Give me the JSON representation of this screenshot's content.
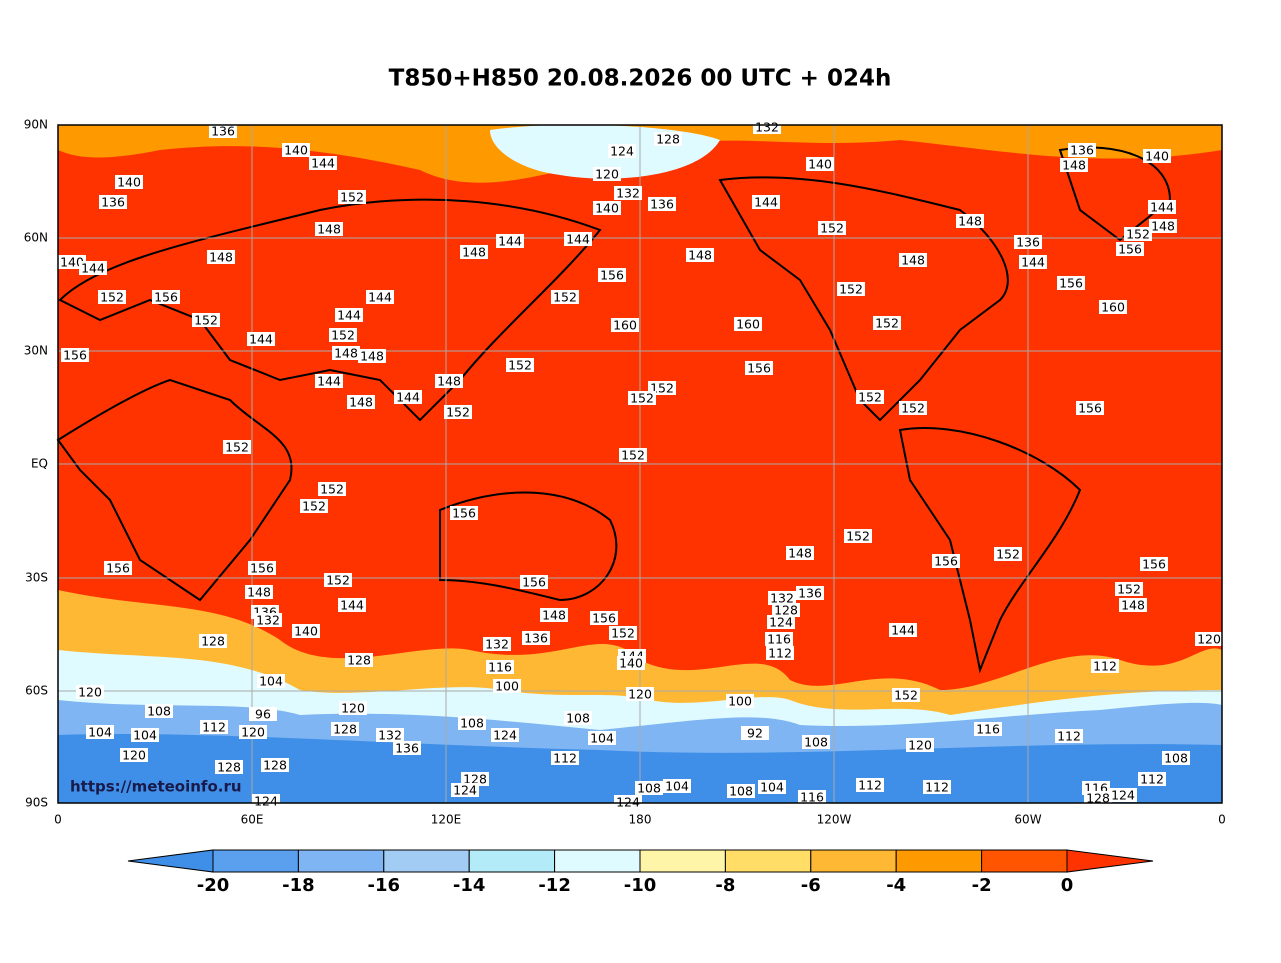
{
  "title": "T850+H850 20.08.2026 00 UTC + 024h",
  "axes": {
    "lat_labels": [
      "90N",
      "60N",
      "30N",
      "EQ",
      "30S",
      "60S",
      "90S"
    ],
    "lon_labels": [
      "0",
      "60E",
      "120E",
      "180",
      "120W",
      "60W",
      "0"
    ]
  },
  "credit": "https://meteoinfo.ru",
  "colorbar": {
    "levels": [
      "-20",
      "-18",
      "-16",
      "-14",
      "-12",
      "-10",
      "-8",
      "-6",
      "-4",
      "-2",
      "0"
    ],
    "colors": [
      "#3f8fe8",
      "#5aa0ee",
      "#7fb5f2",
      "#a3ccf5",
      "#b3ecf8",
      "#e0fbff",
      "#fff5a8",
      "#ffdd66",
      "#ffb833",
      "#ff9900",
      "#ff5500",
      "#ff3300"
    ]
  },
  "contour_labels": [
    "136",
    "128",
    "132",
    "140",
    "124",
    "144",
    "120",
    "140",
    "136",
    "148",
    "140",
    "140",
    "132",
    "152",
    "136",
    "140",
    "136",
    "144",
    "144",
    "148",
    "152",
    "148",
    "152",
    "148",
    "148",
    "148",
    "144",
    "144",
    "148",
    "148",
    "136",
    "144",
    "156",
    "140",
    "144",
    "156",
    "152",
    "156",
    "144",
    "152",
    "152",
    "156",
    "152",
    "144",
    "160",
    "160",
    "152",
    "160",
    "144",
    "152",
    "148",
    "148",
    "156",
    "152",
    "156",
    "144",
    "148",
    "152",
    "148",
    "144",
    "152",
    "152",
    "152",
    "156",
    "152",
    "152",
    "152",
    "152",
    "152",
    "156",
    "152",
    "148",
    "152",
    "156",
    "156",
    "156",
    "156",
    "152",
    "156",
    "152",
    "148",
    "144",
    "136",
    "132",
    "128",
    "148",
    "136",
    "132",
    "148",
    "156",
    "124",
    "140",
    "136",
    "152",
    "144",
    "120",
    "128",
    "116",
    "132",
    "128",
    "144",
    "112",
    "104",
    "140",
    "116",
    "112",
    "120",
    "100",
    "120",
    "100",
    "152",
    "108",
    "120",
    "96",
    "112",
    "108",
    "108",
    "104",
    "104",
    "128",
    "92",
    "132",
    "120",
    "124",
    "136",
    "116",
    "112",
    "120",
    "108",
    "120",
    "112",
    "128",
    "128",
    "108",
    "128",
    "124",
    "104",
    "108",
    "104",
    "108",
    "112",
    "112",
    "112",
    "116",
    "124",
    "128",
    "116",
    "124",
    "124",
    "104"
  ]
}
